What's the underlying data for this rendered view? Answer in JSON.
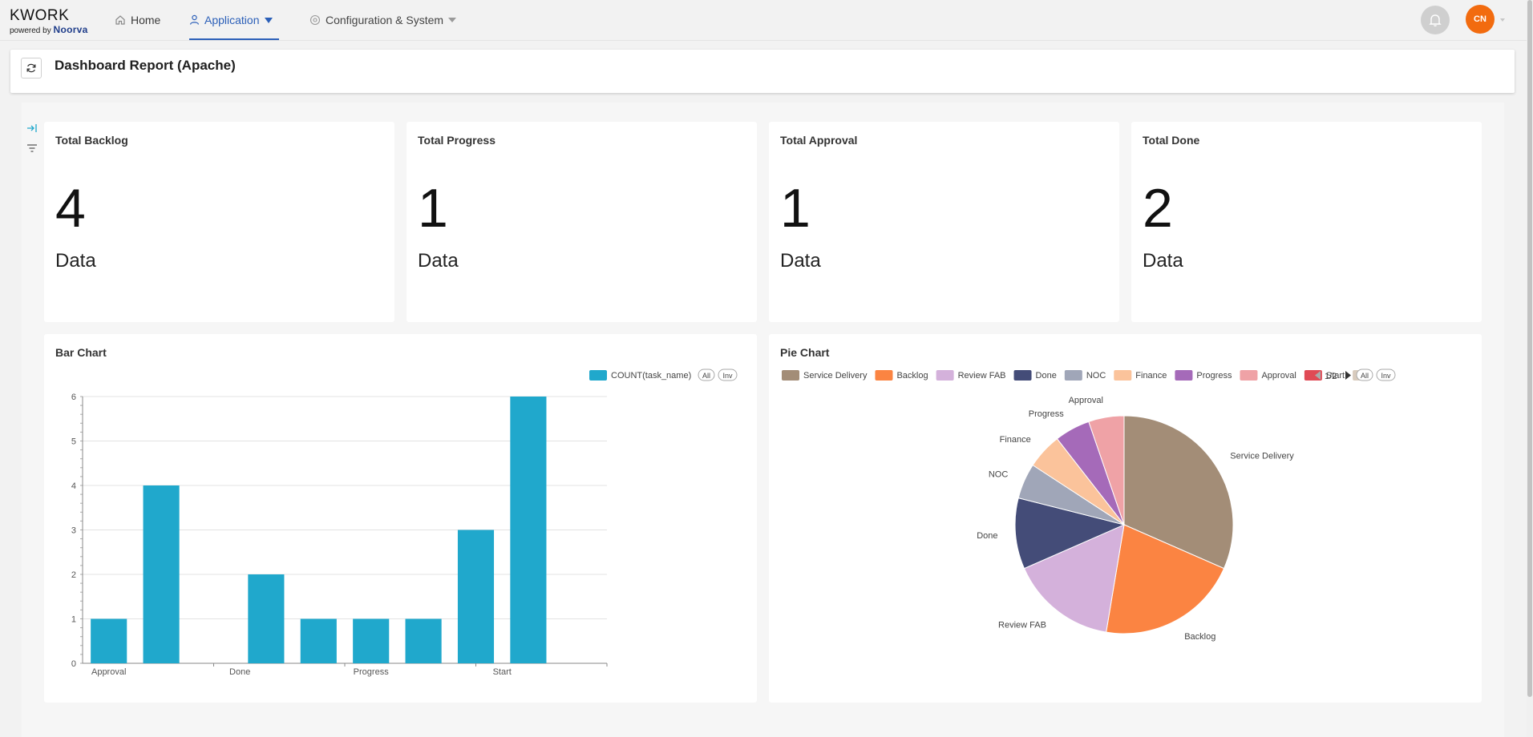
{
  "app": {
    "brand": "KWORK",
    "powered_by": "powered by",
    "powered_brand": "Noorva"
  },
  "nav": {
    "home": "Home",
    "application": "Application",
    "config": "Configuration & System"
  },
  "user": {
    "initials": "CN"
  },
  "page": {
    "title": "Dashboard Report (Apache)"
  },
  "colors": {
    "accent": "#2b5fb8",
    "avatar": "#f26b0f",
    "bar": "#20a8cc"
  },
  "kpis": [
    {
      "title": "Total Backlog",
      "value": "4",
      "unit": "Data"
    },
    {
      "title": "Total Progress",
      "value": "1",
      "unit": "Data"
    },
    {
      "title": "Total Approval",
      "value": "1",
      "unit": "Data"
    },
    {
      "title": "Total Done",
      "value": "2",
      "unit": "Data"
    }
  ],
  "bar_card": {
    "title": "Bar Chart",
    "legend_label": "COUNT(task_name)",
    "all_label": "All",
    "inv_label": "Inv"
  },
  "pie_card": {
    "title": "Pie Chart",
    "page_indicator": "1/2",
    "all_label": "All",
    "inv_label": "Inv"
  },
  "chart_data": [
    {
      "type": "bar",
      "title": "Bar Chart",
      "series": [
        {
          "name": "COUNT(task_name)",
          "values": [
            1,
            4,
            0,
            2,
            1,
            1,
            1,
            3,
            6,
            0
          ]
        }
      ],
      "tick_labels": [
        "Approval",
        "Done",
        "Progress",
        "Start"
      ],
      "ylim": [
        0,
        6
      ],
      "yticks": [
        0,
        1,
        2,
        3,
        4,
        5,
        6
      ],
      "grid": true,
      "legend_position": "top-right"
    },
    {
      "type": "pie",
      "title": "Pie Chart",
      "slices": [
        {
          "label": "Service Delivery",
          "value": 6,
          "color": "#a38d77"
        },
        {
          "label": "Backlog",
          "value": 4,
          "color": "#fb8442"
        },
        {
          "label": "Review FAB",
          "value": 3,
          "color": "#d4b1db"
        },
        {
          "label": "Done",
          "value": 2,
          "color": "#444c78"
        },
        {
          "label": "NOC",
          "value": 1,
          "color": "#a0a6b8"
        },
        {
          "label": "Finance",
          "value": 1,
          "color": "#fbc39b"
        },
        {
          "label": "Progress",
          "value": 1,
          "color": "#a56ab9"
        },
        {
          "label": "Approval",
          "value": 1,
          "color": "#efa2a6"
        }
      ],
      "legend": [
        {
          "label": "Service Delivery",
          "color": "#a38d77"
        },
        {
          "label": "Backlog",
          "color": "#fb8442"
        },
        {
          "label": "Review FAB",
          "color": "#d4b1db"
        },
        {
          "label": "Done",
          "color": "#444c78"
        },
        {
          "label": "NOC",
          "color": "#a0a6b8"
        },
        {
          "label": "Finance",
          "color": "#fbc39b"
        },
        {
          "label": "Progress",
          "color": "#a56ab9"
        },
        {
          "label": "Approval",
          "color": "#efa2a6"
        },
        {
          "label": "Start",
          "color": "#e04a55"
        },
        {
          "label": "",
          "color": "#d8cbbd"
        }
      ],
      "legend_position": "top"
    }
  ]
}
